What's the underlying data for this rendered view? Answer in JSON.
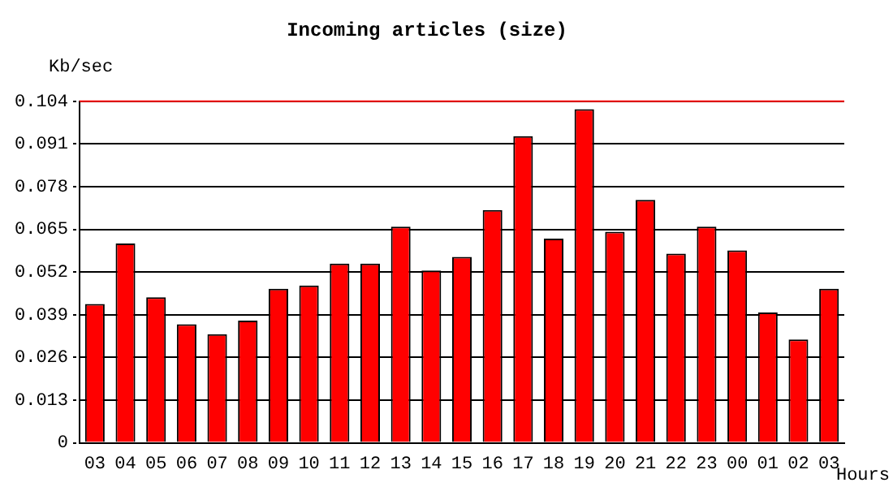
{
  "chart_data": {
    "type": "bar",
    "title": "Incoming articles (size)",
    "ylabel": "Kb/sec",
    "xlabel": "Hours",
    "categories": [
      "03",
      "04",
      "05",
      "06",
      "07",
      "08",
      "09",
      "10",
      "11",
      "12",
      "13",
      "14",
      "15",
      "16",
      "17",
      "18",
      "19",
      "20",
      "21",
      "22",
      "23",
      "00",
      "01",
      "02",
      "03"
    ],
    "values": [
      0.0423,
      0.0607,
      0.0443,
      0.0361,
      0.0331,
      0.0372,
      0.0469,
      0.0479,
      0.0546,
      0.0546,
      0.0658,
      0.0525,
      0.0566,
      0.0709,
      0.0934,
      0.0622,
      0.1016,
      0.0643,
      0.074,
      0.0576,
      0.0658,
      0.0586,
      0.0397,
      0.0315,
      0.0469
    ],
    "color": "#ff0000",
    "ylim": [
      0,
      0.104
    ],
    "yticks": [
      0,
      0.013,
      0.026,
      0.039,
      0.052,
      0.065,
      0.078,
      0.091,
      0.104
    ],
    "grid": "y",
    "line_style": "dotted",
    "ref_lines": [
      {
        "axis": "y",
        "value": 0.104,
        "color": "#ff0000"
      }
    ]
  }
}
